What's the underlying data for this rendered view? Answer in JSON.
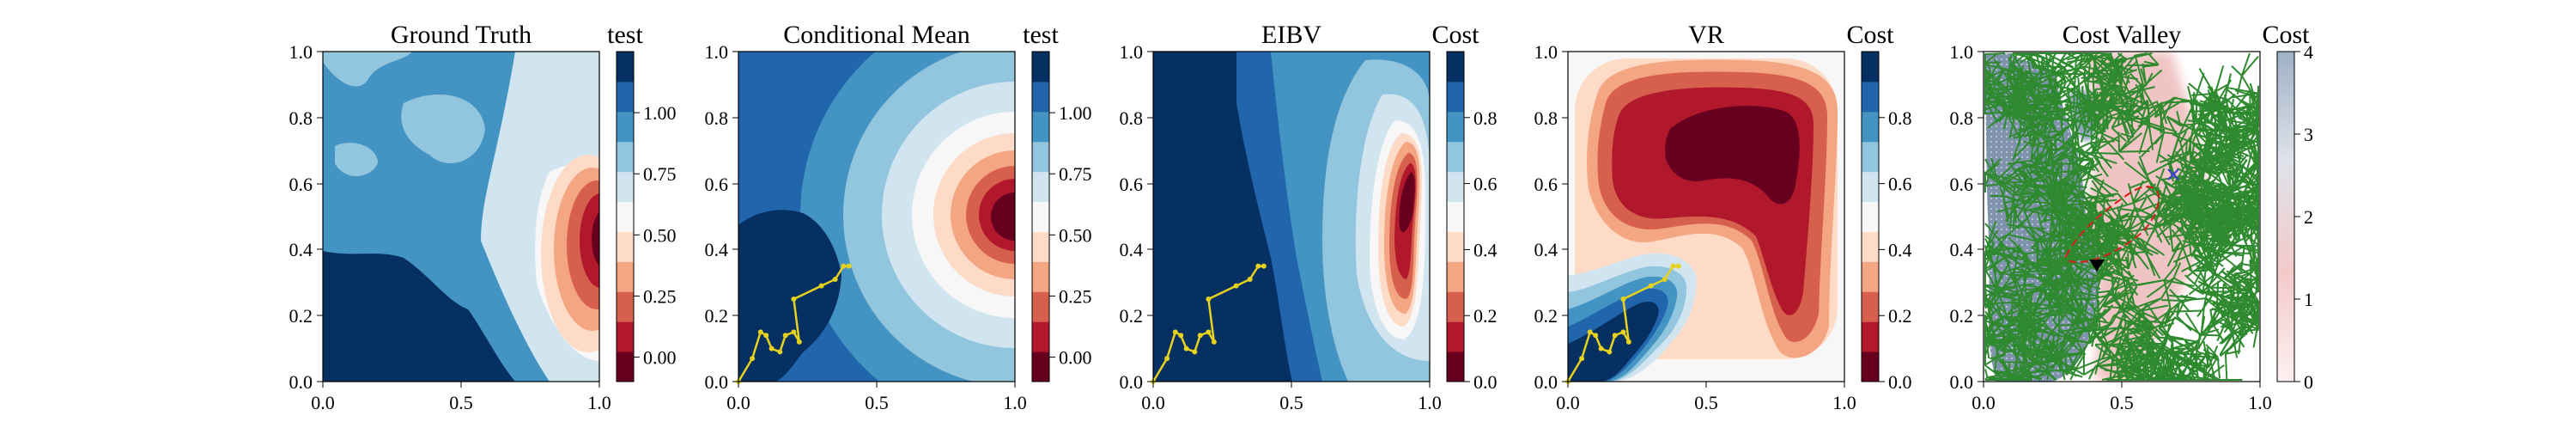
{
  "chart_data": [
    {
      "type": "heatmap",
      "title": "Ground Truth",
      "xlim": [
        0,
        1
      ],
      "ylim": [
        0,
        1
      ],
      "x_ticks": [
        "0.0",
        "0.5",
        "1.0"
      ],
      "y_ticks": [
        "0.0",
        "0.2",
        "0.4",
        "0.6",
        "0.8",
        "1.0"
      ],
      "colorbar": {
        "title": "test",
        "range": [
          -0.1,
          1.25
        ],
        "ticks": [
          "0.00",
          "0.25",
          "0.50",
          "0.75",
          "1.00"
        ],
        "levels": [
          "#67001f",
          "#b2182b",
          "#d6604d",
          "#f4a582",
          "#fddbc7",
          "#f7f7f7",
          "#d1e5f0",
          "#92c5de",
          "#4393c3",
          "#2166ac",
          "#053061"
        ]
      },
      "grid": false
    },
    {
      "type": "heatmap",
      "title": "Conditional Mean",
      "xlim": [
        0,
        1
      ],
      "ylim": [
        0,
        1
      ],
      "x_ticks": [
        "0.0",
        "0.5",
        "1.0"
      ],
      "y_ticks": [
        "0.0",
        "0.2",
        "0.4",
        "0.6",
        "0.8",
        "1.0"
      ],
      "colorbar": {
        "title": "test",
        "range": [
          -0.1,
          1.25
        ],
        "ticks": [
          "0.00",
          "0.25",
          "0.50",
          "0.75",
          "1.00"
        ],
        "levels": [
          "#67001f",
          "#b2182b",
          "#d6604d",
          "#f4a582",
          "#fddbc7",
          "#f7f7f7",
          "#d1e5f0",
          "#92c5de",
          "#4393c3",
          "#2166ac",
          "#053061"
        ]
      },
      "path": {
        "color": "#e6d21e",
        "points": [
          [
            0.0,
            0.0
          ],
          [
            0.05,
            0.07
          ],
          [
            0.08,
            0.15
          ],
          [
            0.1,
            0.14
          ],
          [
            0.12,
            0.1
          ],
          [
            0.15,
            0.09
          ],
          [
            0.17,
            0.14
          ],
          [
            0.2,
            0.15
          ],
          [
            0.22,
            0.12
          ],
          [
            0.2,
            0.25
          ],
          [
            0.3,
            0.29
          ],
          [
            0.35,
            0.31
          ],
          [
            0.38,
            0.35
          ],
          [
            0.4,
            0.35
          ]
        ]
      },
      "grid": false
    },
    {
      "type": "heatmap",
      "title": "EIBV",
      "xlim": [
        0,
        1
      ],
      "ylim": [
        0,
        1
      ],
      "x_ticks": [
        "0.0",
        "0.5",
        "1.0"
      ],
      "y_ticks": [
        "0.0",
        "0.2",
        "0.4",
        "0.6",
        "0.8",
        "1.0"
      ],
      "colorbar": {
        "title": "Cost",
        "range": [
          0,
          1
        ],
        "ticks": [
          "0.0",
          "0.2",
          "0.4",
          "0.6",
          "0.8"
        ],
        "levels": [
          "#67001f",
          "#b2182b",
          "#d6604d",
          "#f4a582",
          "#fddbc7",
          "#f7f7f7",
          "#d1e5f0",
          "#92c5de",
          "#4393c3",
          "#2166ac",
          "#053061"
        ]
      },
      "path": {
        "color": "#e6d21e",
        "points": [
          [
            0.0,
            0.0
          ],
          [
            0.05,
            0.07
          ],
          [
            0.08,
            0.15
          ],
          [
            0.1,
            0.14
          ],
          [
            0.12,
            0.1
          ],
          [
            0.15,
            0.09
          ],
          [
            0.17,
            0.14
          ],
          [
            0.2,
            0.15
          ],
          [
            0.22,
            0.12
          ],
          [
            0.2,
            0.25
          ],
          [
            0.3,
            0.29
          ],
          [
            0.35,
            0.31
          ],
          [
            0.38,
            0.35
          ],
          [
            0.4,
            0.35
          ]
        ]
      },
      "grid": false
    },
    {
      "type": "heatmap",
      "title": "VR",
      "xlim": [
        0,
        1
      ],
      "ylim": [
        0,
        1
      ],
      "x_ticks": [
        "0.0",
        "0.5",
        "1.0"
      ],
      "y_ticks": [
        "0.0",
        "0.2",
        "0.4",
        "0.6",
        "0.8",
        "1.0"
      ],
      "colorbar": {
        "title": "Cost",
        "range": [
          0,
          1
        ],
        "ticks": [
          "0.0",
          "0.2",
          "0.4",
          "0.6",
          "0.8"
        ],
        "levels": [
          "#67001f",
          "#b2182b",
          "#d6604d",
          "#f4a582",
          "#fddbc7",
          "#f7f7f7",
          "#d1e5f0",
          "#92c5de",
          "#4393c3",
          "#2166ac",
          "#053061"
        ]
      },
      "path": {
        "color": "#e6d21e",
        "points": [
          [
            0.0,
            0.0
          ],
          [
            0.05,
            0.07
          ],
          [
            0.08,
            0.15
          ],
          [
            0.1,
            0.14
          ],
          [
            0.12,
            0.1
          ],
          [
            0.15,
            0.09
          ],
          [
            0.17,
            0.14
          ],
          [
            0.2,
            0.15
          ],
          [
            0.22,
            0.12
          ],
          [
            0.2,
            0.25
          ],
          [
            0.3,
            0.29
          ],
          [
            0.35,
            0.31
          ],
          [
            0.38,
            0.35
          ],
          [
            0.4,
            0.35
          ]
        ]
      },
      "grid": false
    },
    {
      "type": "heatmap",
      "title": "Cost Valley",
      "xlim": [
        0,
        1
      ],
      "ylim": [
        0,
        1
      ],
      "x_ticks": [
        "0.0",
        "0.5",
        "1.0"
      ],
      "y_ticks": [
        "0.0",
        "0.2",
        "0.4",
        "0.6",
        "0.8",
        "1.0"
      ],
      "colorbar": {
        "title": "Cost",
        "range": [
          0,
          4
        ],
        "ticks": [
          "0",
          "1",
          "2",
          "3",
          "4"
        ],
        "gradient": [
          "#fdf0f0",
          "#f3c9c9",
          "#dfe3ea",
          "#9fb0c6"
        ]
      },
      "markers": [
        {
          "name": "current location",
          "x": 0.4,
          "y": 0.35,
          "symbol": "down-triangle",
          "color": "#000000"
        },
        {
          "name": "next waypoint",
          "x": 0.7,
          "y": 0.63,
          "symbol": "x",
          "color": "#3b3bd9"
        }
      ],
      "tree_color": "#2f8a2f",
      "budget_ellipse_color": "#d91e1e",
      "grid": false
    }
  ]
}
